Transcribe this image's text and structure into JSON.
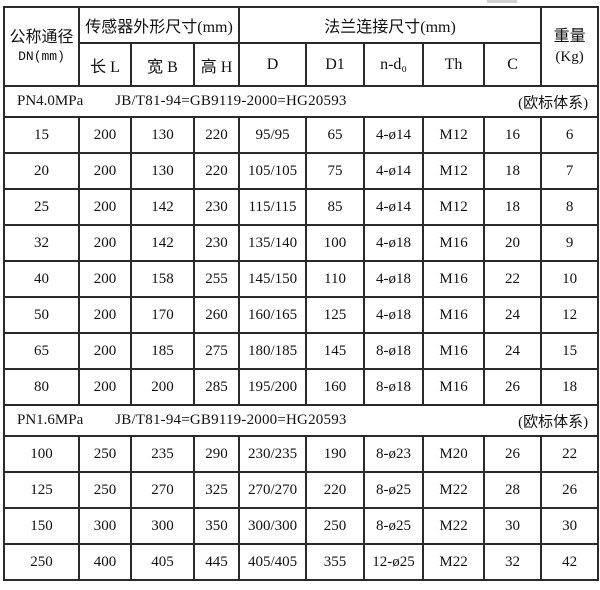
{
  "table": {
    "header": {
      "dn_line1": "公称通径",
      "dn_line2": "DN(mm)",
      "sensor_group": "传感器外形尺寸(mm)",
      "flange_group": "法兰连接尺寸(mm)",
      "weight_line1": "重量",
      "weight_line2": "(Kg)",
      "sub": [
        "长 L",
        "宽 B",
        "高 H",
        "D",
        "D1",
        "n-d₀",
        "Th",
        "C"
      ]
    },
    "sections": [
      {
        "pressure": "PN4.0MPa",
        "standard": "JB/T81-94=GB9119-2000=HG20593",
        "note": "(欧标体系)",
        "rows": [
          [
            "15",
            "200",
            "130",
            "220",
            "95/95",
            "65",
            "4-ø14",
            "M12",
            "16",
            "6"
          ],
          [
            "20",
            "200",
            "130",
            "220",
            "105/105",
            "75",
            "4-ø14",
            "M12",
            "18",
            "7"
          ],
          [
            "25",
            "200",
            "142",
            "230",
            "115/115",
            "85",
            "4-ø14",
            "M12",
            "18",
            "8"
          ],
          [
            "32",
            "200",
            "142",
            "230",
            "135/140",
            "100",
            "4-ø18",
            "M16",
            "20",
            "9"
          ],
          [
            "40",
            "200",
            "158",
            "255",
            "145/150",
            "110",
            "4-ø18",
            "M16",
            "22",
            "10"
          ],
          [
            "50",
            "200",
            "170",
            "260",
            "160/165",
            "125",
            "4-ø18",
            "M16",
            "24",
            "12"
          ],
          [
            "65",
            "200",
            "185",
            "275",
            "180/185",
            "145",
            "8-ø18",
            "M16",
            "24",
            "15"
          ],
          [
            "80",
            "200",
            "200",
            "285",
            "195/200",
            "160",
            "8-ø18",
            "M16",
            "26",
            "18"
          ]
        ]
      },
      {
        "pressure": "PN1.6MPa",
        "standard": "JB/T81-94=GB9119-2000=HG20593",
        "note": "(欧标体系)",
        "rows": [
          [
            "100",
            "250",
            "235",
            "290",
            "230/235",
            "190",
            "8-ø23",
            "M20",
            "26",
            "22"
          ],
          [
            "125",
            "250",
            "270",
            "325",
            "270/270",
            "220",
            "8-ø25",
            "M22",
            "28",
            "26"
          ],
          [
            "150",
            "300",
            "300",
            "350",
            "300/300",
            "250",
            "8-ø25",
            "M22",
            "30",
            "30"
          ],
          [
            "250",
            "400",
            "405",
            "445",
            "405/405",
            "355",
            "12-ø25",
            "M22",
            "32",
            "42"
          ]
        ]
      }
    ],
    "colors": {
      "border": "#2a2a2a",
      "text": "#111111",
      "background": "#ffffff"
    }
  }
}
